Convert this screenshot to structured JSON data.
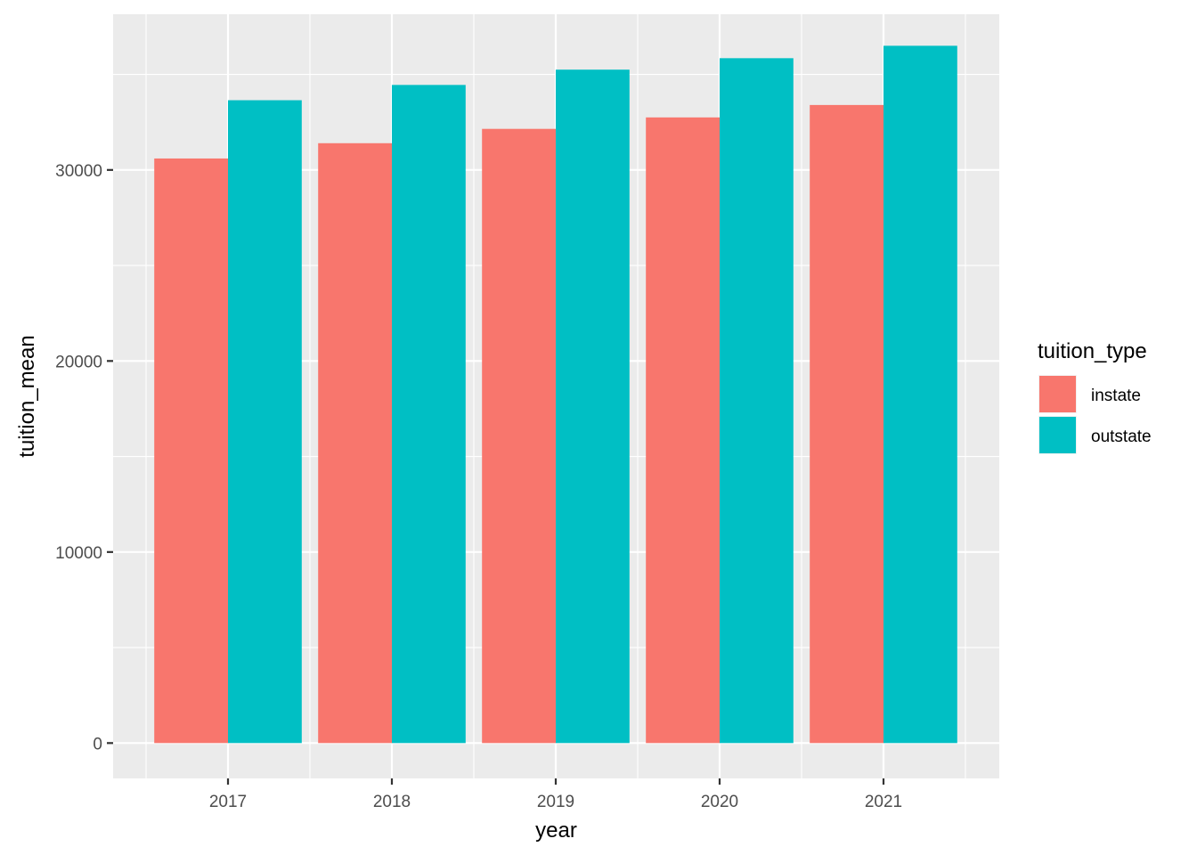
{
  "chart_data": {
    "type": "bar",
    "xlabel": "year",
    "ylabel": "tuition_mean",
    "categories": [
      "2017",
      "2018",
      "2019",
      "2020",
      "2021"
    ],
    "series": [
      {
        "name": "instate",
        "color": "#F8766D",
        "values": [
          30600,
          31400,
          32150,
          32750,
          33400
        ]
      },
      {
        "name": "outstate",
        "color": "#00BFC4",
        "values": [
          33650,
          34450,
          35250,
          35850,
          36500
        ]
      }
    ],
    "y_ticks": [
      "0",
      "10000",
      "20000",
      "30000"
    ],
    "ylim": [
      -1850,
      38150
    ],
    "grid": true,
    "legend": {
      "title": "tuition_type",
      "position": "right"
    },
    "panel_background": "#EBEBEB",
    "grid_color": "#FFFFFF"
  }
}
